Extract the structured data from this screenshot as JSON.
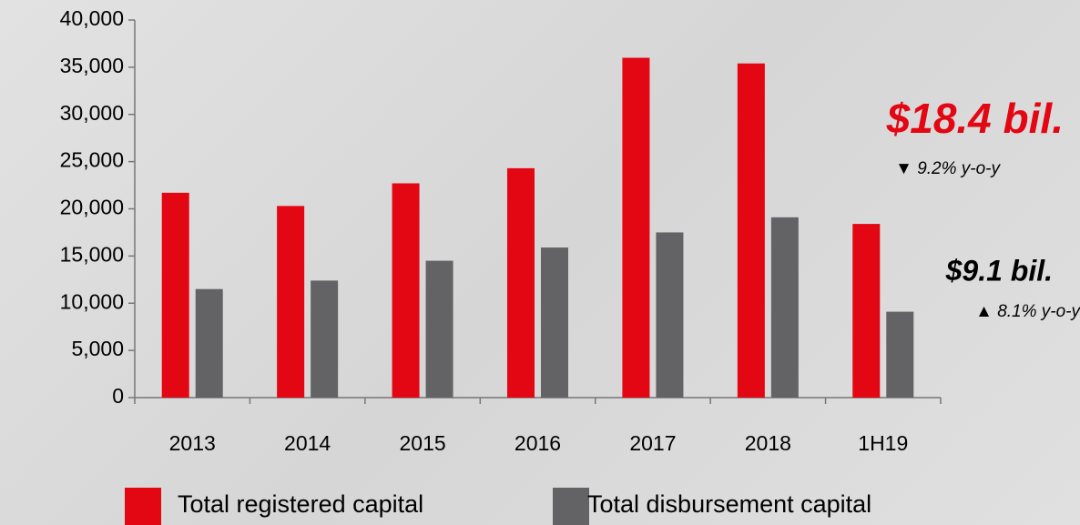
{
  "chart_data": {
    "type": "bar",
    "categories": [
      "2013",
      "2014",
      "2015",
      "2016",
      "2017",
      "2018",
      "1H19"
    ],
    "series": [
      {
        "name": "Total registered capital",
        "color": "#e30613",
        "values": [
          21700,
          20300,
          22700,
          24300,
          36000,
          35400,
          18400
        ]
      },
      {
        "name": "Total disbursement capital",
        "color": "#636366",
        "values": [
          11500,
          12400,
          14500,
          15900,
          17500,
          19100,
          9100
        ]
      }
    ],
    "ylim": [
      0,
      40000
    ],
    "yticks": [
      0,
      {
        "value": 5000,
        "label": "5,000"
      },
      {
        "value": 10000,
        "label": "10,000"
      },
      {
        "value": 15000,
        "label": "15,000"
      },
      {
        "value": 20000,
        "label": "20,000"
      },
      {
        "value": 25000,
        "label": "25,000"
      },
      {
        "value": 30000,
        "label": "30,000"
      },
      {
        "value": 35000,
        "label": "35,000"
      },
      {
        "value": 40000,
        "label": "40,000"
      }
    ],
    "grid": false,
    "legend": "bottom",
    "annotations": [
      {
        "text": "$18.4 bil.",
        "note": "▼ 9.2% y-o-y",
        "color": "#e30613"
      },
      {
        "text": "$9.1 bil.",
        "note": "▲ 8.1% y-o-y",
        "color": "#000000"
      }
    ]
  }
}
